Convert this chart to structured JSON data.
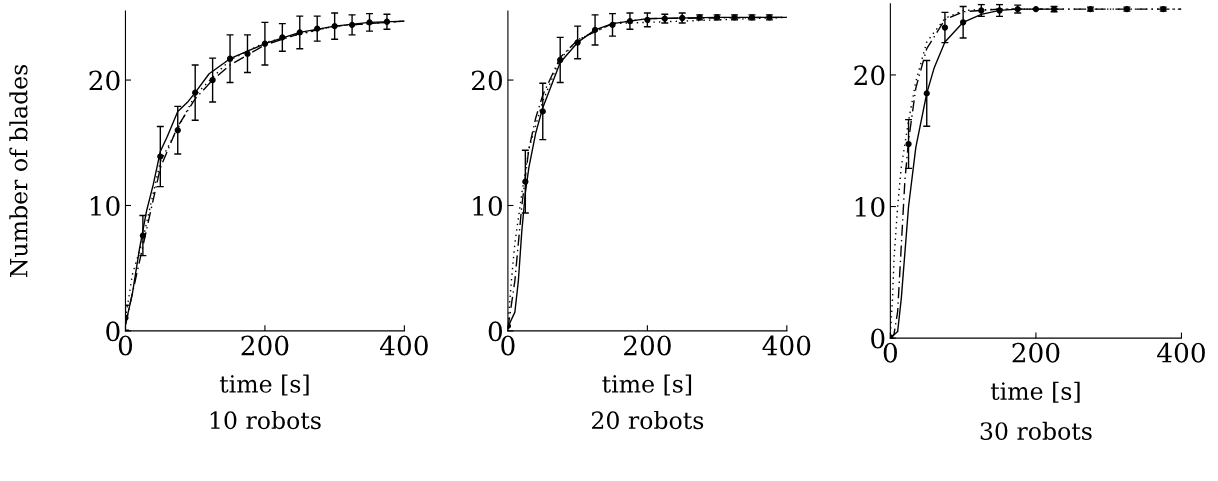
{
  "chart_data": [
    {
      "type": "line",
      "title": "10 robots",
      "xlabel": "time [s]",
      "ylabel": "Number of blades",
      "xlim": [
        0,
        400
      ],
      "xticks": [
        0,
        200,
        400
      ],
      "ylim": [
        0,
        25.5
      ],
      "yticks": [
        0,
        10,
        20
      ],
      "grid": false,
      "legend": false,
      "series": [
        {
          "type": "scatter",
          "color": "#000000",
          "marker": "circle",
          "x": [
            0,
            25,
            50,
            75,
            100,
            125,
            150,
            175,
            200,
            225,
            250,
            275,
            300,
            325,
            350,
            375
          ],
          "values": [
            1.05,
            7.6,
            13.9,
            16.0,
            19.0,
            20.0,
            21.7,
            22.1,
            22.9,
            23.4,
            23.8,
            24.1,
            24.3,
            24.4,
            24.6,
            24.65
          ],
          "errors": [
            1.0,
            1.6,
            2.4,
            1.9,
            2.2,
            1.75,
            1.9,
            1.5,
            1.7,
            1.1,
            1.3,
            1.0,
            1.05,
            0.8,
            0.7,
            0.6
          ]
        },
        {
          "color": "#000000",
          "line_style": "solid",
          "x": [
            0,
            10,
            20,
            30,
            40,
            50,
            60,
            75,
            90,
            100,
            120,
            150,
            175,
            200,
            250,
            300,
            350,
            400
          ],
          "values": [
            0.5,
            3,
            6.5,
            9.5,
            11.7,
            14.3,
            15.5,
            17.5,
            18.3,
            19.0,
            20.5,
            21.7,
            22.3,
            22.9,
            23.8,
            24.3,
            24.6,
            24.7
          ]
        },
        {
          "color": "#000000",
          "line_style": "dashed",
          "x": [
            0,
            20,
            50,
            75,
            100,
            125,
            150,
            200,
            250,
            300,
            400
          ],
          "values": [
            0.5,
            5.5,
            13.0,
            16.3,
            18.5,
            20.0,
            21.2,
            22.8,
            23.7,
            24.3,
            24.7
          ]
        },
        {
          "color": "#000000",
          "line_style": "dotted",
          "x": [
            0,
            10,
            25,
            50,
            100,
            150,
            200,
            300,
            400
          ],
          "values": [
            1.0,
            4.5,
            7.3,
            13.5,
            18.8,
            21.6,
            23.0,
            24.3,
            24.7
          ]
        }
      ]
    },
    {
      "type": "line",
      "title": "20 robots",
      "xlabel": "time [s]",
      "xlim": [
        0,
        400
      ],
      "xticks": [
        0,
        200,
        400
      ],
      "ylim": [
        0,
        25.5
      ],
      "yticks": [
        0,
        10,
        20
      ],
      "grid": false,
      "legend": false,
      "series": [
        {
          "type": "scatter",
          "color": "#000000",
          "marker": "circle",
          "x": [
            0,
            25,
            50,
            75,
            100,
            125,
            150,
            175,
            200,
            225,
            250,
            275,
            300,
            325,
            350,
            375
          ],
          "values": [
            0.4,
            11.9,
            17.5,
            21.6,
            23.0,
            24.0,
            24.4,
            24.7,
            24.8,
            24.9,
            24.95,
            25.0,
            25.0,
            25.0,
            25.0,
            25.0
          ],
          "errors": [
            null,
            2.5,
            2.25,
            1.8,
            1.3,
            1.2,
            0.9,
            0.65,
            0.55,
            0.35,
            0.4,
            0.2,
            0.2,
            0.2,
            0.2,
            0.2
          ]
        },
        {
          "color": "#000000",
          "line_style": "solid",
          "x": [
            0,
            10,
            15,
            20,
            25,
            30,
            40,
            50,
            75,
            100,
            125,
            150,
            200,
            300,
            400
          ],
          "values": [
            0.3,
            1.5,
            4,
            8,
            11,
            13,
            15.8,
            17.8,
            21.4,
            23.0,
            24.0,
            24.5,
            24.9,
            25.0,
            25.0
          ]
        },
        {
          "color": "#000000",
          "line_style": "dashed",
          "x": [
            0,
            10,
            20,
            30,
            40,
            50,
            75,
            100,
            150,
            200,
            400
          ],
          "values": [
            0.2,
            4,
            10,
            14.5,
            17,
            18.8,
            21.8,
            23.2,
            24.5,
            24.9,
            25
          ]
        },
        {
          "color": "#000000",
          "line_style": "dotted",
          "x": [
            0,
            5,
            10,
            20,
            30,
            50,
            75,
            100,
            150,
            400
          ],
          "values": [
            0.5,
            4,
            7,
            11,
            14.5,
            18.3,
            21.7,
            23.2,
            24.5,
            25
          ]
        }
      ]
    },
    {
      "type": "line",
      "title": "30 robots",
      "xlabel": "time [s]",
      "xlim": [
        0,
        400
      ],
      "xticks": [
        0,
        200,
        400
      ],
      "ylim": [
        0,
        25.4
      ],
      "yticks": [
        0,
        10,
        20
      ],
      "grid": false,
      "legend": false,
      "series": [
        {
          "type": "scatter",
          "color": "#000000",
          "marker": "circle",
          "x": [
            0,
            25,
            50,
            75,
            100,
            125,
            150,
            175,
            200,
            225,
            275,
            325,
            375
          ],
          "values": [
            0.05,
            14.75,
            18.6,
            23.6,
            24.0,
            24.9,
            24.9,
            25.0,
            25.0,
            25.0,
            25.0,
            25.0,
            25.0
          ],
          "errors": [
            null,
            1.85,
            2.5,
            1.15,
            1.2,
            0.45,
            0.45,
            0.3,
            null,
            0.2,
            0.15,
            0.15,
            0.15
          ]
        },
        {
          "color": "#000000",
          "line_style": "solid",
          "x": [
            0,
            10,
            15,
            20,
            25,
            35,
            50,
            60,
            75,
            100,
            125,
            150,
            175,
            225
          ],
          "values": [
            0,
            0.5,
            3,
            6.5,
            10,
            14.5,
            18.6,
            20.5,
            22.5,
            24.0,
            24.6,
            24.9,
            25,
            25
          ]
        },
        {
          "color": "#000000",
          "line_style": "dashed",
          "x": [
            0,
            5,
            10,
            15,
            20,
            25,
            35,
            50,
            75,
            100,
            150,
            400
          ],
          "values": [
            0,
            0.3,
            2,
            7,
            12,
            15,
            19,
            22,
            24.2,
            24.8,
            25,
            25
          ]
        },
        {
          "color": "#000000",
          "line_style": "dotted",
          "x": [
            0,
            3,
            5,
            10,
            15,
            25,
            35,
            50,
            75,
            100,
            150,
            400
          ],
          "values": [
            0.3,
            3,
            6,
            10,
            13,
            16.5,
            19.5,
            22.5,
            24.3,
            24.9,
            25,
            25
          ]
        }
      ]
    }
  ]
}
